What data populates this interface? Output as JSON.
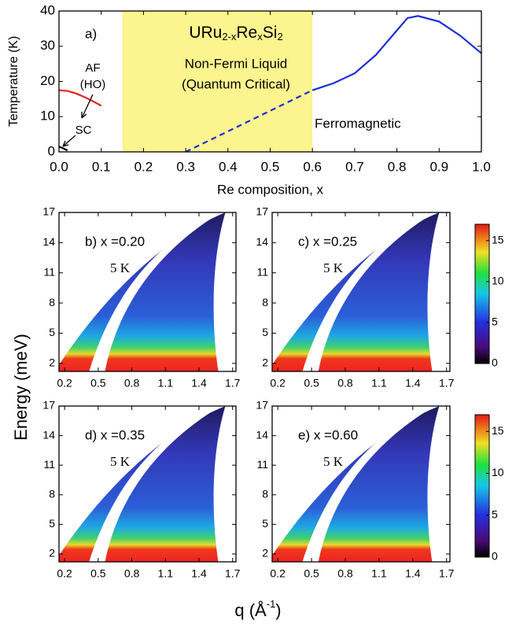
{
  "chart_data": [
    {
      "type": "line",
      "xlabel": "Re composition, x",
      "ylabel": "Temperature (K)",
      "panel_label": "a)",
      "compound": [
        "URu",
        "2-x",
        "Re",
        "x",
        "Si",
        "2"
      ],
      "annotations": [
        "AF",
        "(HO)",
        "SC",
        "Non-Fermi Liquid",
        "(Quantum Critical)",
        "Ferromagnetic"
      ],
      "xlim": [
        0,
        1
      ],
      "ylim": [
        0,
        40
      ],
      "xticks": [
        {
          "value": 0,
          "label": "0.0"
        },
        0.1,
        0.2,
        0.3,
        0.4,
        0.5,
        0.6,
        0.7,
        0.8,
        0.9,
        {
          "value": 1,
          "label": "1.0"
        }
      ],
      "yticks": [
        0,
        10,
        20,
        30,
        40
      ],
      "shaded_region": {
        "x": [
          0.15,
          0.6
        ],
        "color": "#fcf48e"
      },
      "series": [
        {
          "color": "#e8201e",
          "linestyle": "solid",
          "x": [
            0,
            0.02,
            0.04,
            0.06,
            0.08,
            0.1
          ],
          "values": [
            17.5,
            17.3,
            16.6,
            15.6,
            14.4,
            13.1
          ]
        },
        {
          "color": "#000000",
          "linestyle": "solid",
          "x": [
            0,
            0.01,
            0.02
          ],
          "values": [
            1.5,
            1,
            0.4
          ]
        },
        {
          "color": "#1a2fd6",
          "linestyle": "solid",
          "x": [
            0.6,
            0.65,
            0.7,
            0.75,
            0.8,
            0.825,
            0.85,
            0.9,
            0.95,
            1
          ],
          "values": [
            17.5,
            19.5,
            22.3,
            27.5,
            34.5,
            38,
            38.6,
            37,
            33,
            28
          ]
        },
        {
          "color": "#1a2fd6",
          "linestyle": "dashed",
          "x": [
            0.3,
            0.6
          ],
          "values": [
            0,
            17.5
          ]
        }
      ]
    },
    {
      "type": "heatmap",
      "panel_label": "b) x =0.20",
      "temperature": "5 K",
      "xlim": [
        0.15,
        1.73
      ],
      "ylim": [
        1.2,
        17
      ],
      "xticks": [
        0.2,
        0.5,
        0.8,
        1.1,
        1.4,
        1.7
      ],
      "yticks": [
        2,
        5,
        8,
        11,
        14,
        17
      ]
    },
    {
      "type": "heatmap",
      "panel_label": "c) x =0.25",
      "temperature": "5 K",
      "xlim": [
        0.15,
        1.73
      ],
      "ylim": [
        1.2,
        17
      ],
      "xticks": [
        0.2,
        0.5,
        0.8,
        1.1,
        1.4,
        1.7
      ],
      "yticks": [
        2,
        5,
        8,
        11,
        14,
        17
      ],
      "colorbar": {
        "clim": [
          0,
          17
        ],
        "ticks": [
          0,
          5,
          10,
          15
        ]
      }
    },
    {
      "type": "heatmap",
      "panel_label": "d) x =0.35",
      "temperature": "5 K",
      "xlim": [
        0.15,
        1.73
      ],
      "ylim": [
        1.2,
        17
      ],
      "xticks": [
        0.2,
        0.5,
        0.8,
        1.1,
        1.4,
        1.7
      ],
      "yticks": [
        2,
        5,
        8,
        11,
        14,
        17
      ]
    },
    {
      "type": "heatmap",
      "panel_label": "e) x =0.60",
      "temperature": "5 K",
      "xlim": [
        0.15,
        1.73
      ],
      "ylim": [
        1.2,
        17
      ],
      "xticks": [
        0.2,
        0.5,
        0.8,
        1.1,
        1.4,
        1.7
      ],
      "yticks": [
        2,
        5,
        8,
        11,
        14,
        17
      ],
      "colorbar": {
        "clim": [
          0,
          17
        ],
        "ticks": [
          0,
          5,
          10,
          15
        ]
      }
    }
  ],
  "figure_labels": {
    "energy": "Energy (meV)",
    "q": [
      "q (Å",
      "-1",
      ")"
    ]
  }
}
